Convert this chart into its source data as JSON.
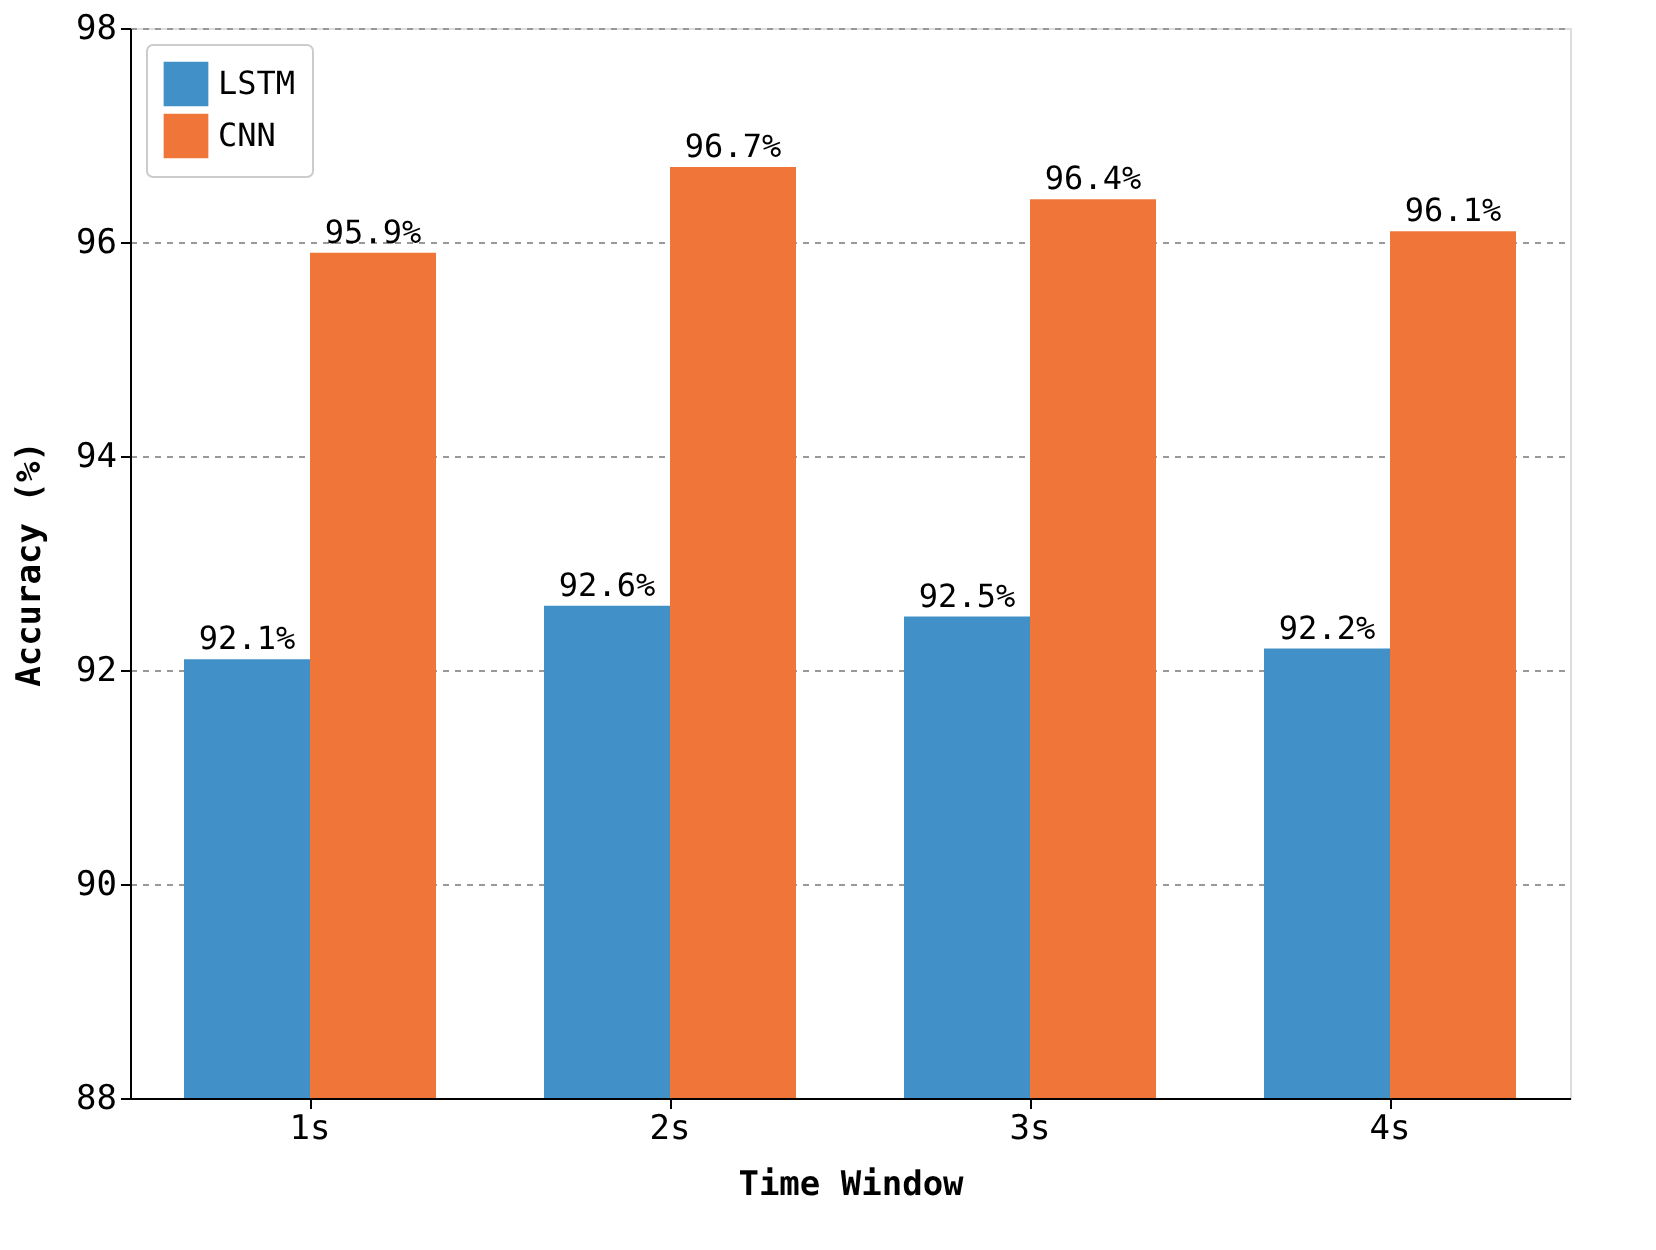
{
  "chart_data": {
    "type": "bar",
    "xlabel": "Time Window",
    "ylabel": "Accuracy (%)",
    "categories": [
      "1s",
      "2s",
      "3s",
      "4s"
    ],
    "series": [
      {
        "name": "LSTM",
        "color": "#4191c8",
        "values": [
          92.1,
          92.6,
          92.5,
          92.2
        ],
        "value_labels": [
          "92.1%",
          "92.6%",
          "92.5%",
          "92.2%"
        ]
      },
      {
        "name": "CNN",
        "color": "#ef7638",
        "values": [
          95.9,
          96.7,
          96.4,
          96.1
        ],
        "value_labels": [
          "95.9%",
          "96.7%",
          "96.4%",
          "96.1%"
        ]
      }
    ],
    "ylim": [
      88,
      98
    ],
    "yticks": [
      88,
      90,
      92,
      94,
      96,
      98
    ],
    "grid": "y",
    "legend": "top left"
  }
}
